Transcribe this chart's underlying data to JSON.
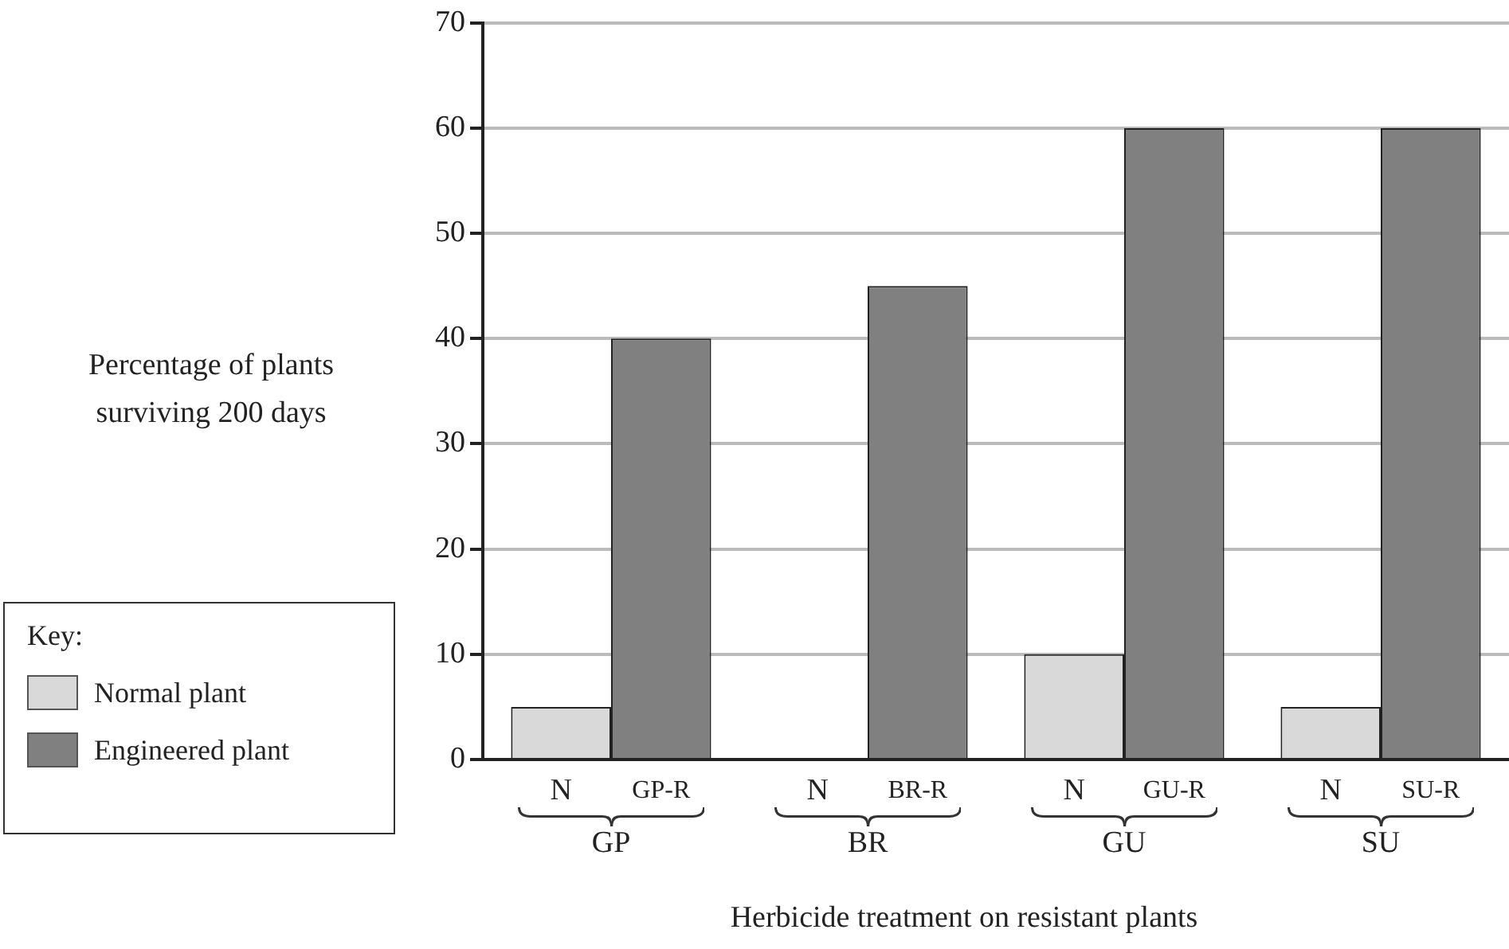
{
  "chart_data": {
    "type": "bar",
    "xlabel": "Herbicide treatment on resistant plants",
    "ylabel": "Percentage of plants surviving 200 days",
    "legend_title": "Key:",
    "categories": [
      "GP",
      "BR",
      "GU",
      "SU"
    ],
    "series": [
      {
        "name": "Normal plant",
        "color": "#d9d9d9",
        "values": [
          5,
          0,
          10,
          5
        ]
      },
      {
        "name": "Engineered plant",
        "color": "#808080",
        "values": [
          40,
          45,
          60,
          60
        ]
      }
    ],
    "annotations": [
      "N",
      "GP-R",
      "N",
      "BR-R",
      "N",
      "GU-R",
      "N",
      "SU-R"
    ],
    "ylim": [
      0,
      70
    ],
    "yticks": [
      0,
      10,
      20,
      30,
      40,
      50,
      60,
      70
    ],
    "grid": "y",
    "legend": "bottom left"
  }
}
